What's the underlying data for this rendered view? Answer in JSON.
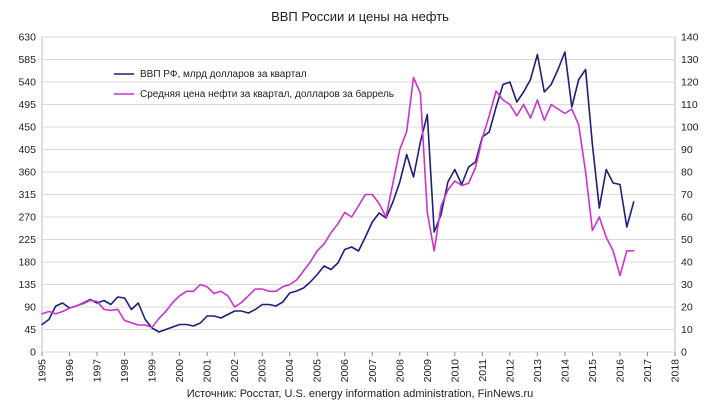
{
  "chart_data": {
    "type": "line",
    "title": "ВВП России и цены на нефть",
    "source": "Источник: Росстат, U.S. energy information administration, FinNews.ru",
    "x_ticks": [
      "1995",
      "1996",
      "1997",
      "1998",
      "1999",
      "2000",
      "2001",
      "2002",
      "2003",
      "2004",
      "2005",
      "2006",
      "2007",
      "2008",
      "2009",
      "2010",
      "2011",
      "2012",
      "2013",
      "2014",
      "2015",
      "2016",
      "2017",
      "2018"
    ],
    "x_range": [
      1995,
      2018
    ],
    "y_left_ticks": [
      "0",
      "45",
      "90",
      "135",
      "180",
      "225",
      "270",
      "315",
      "360",
      "405",
      "450",
      "495",
      "540",
      "585",
      "630"
    ],
    "y_left_range": [
      0,
      630
    ],
    "y_right_ticks": [
      "0",
      "10",
      "20",
      "30",
      "40",
      "50",
      "60",
      "70",
      "80",
      "90",
      "100",
      "110",
      "120",
      "130",
      "140"
    ],
    "y_right_range": [
      0,
      140
    ],
    "grid": "horizontal",
    "legend_position": "top-left",
    "colors": {
      "gdp": "#1f1f7a",
      "oil": "#cc33cc"
    },
    "series": [
      {
        "name": "ВВП РФ, млрд долларов за квартал",
        "axis": "left",
        "color": "#1f1f7a",
        "x": [
          1995.0,
          1995.25,
          1995.5,
          1995.75,
          1996.0,
          1996.25,
          1996.5,
          1996.75,
          1997.0,
          1997.25,
          1997.5,
          1997.75,
          1998.0,
          1998.25,
          1998.5,
          1998.75,
          1999.0,
          1999.25,
          1999.5,
          1999.75,
          2000.0,
          2000.25,
          2000.5,
          2000.75,
          2001.0,
          2001.25,
          2001.5,
          2001.75,
          2002.0,
          2002.25,
          2002.5,
          2002.75,
          2003.0,
          2003.25,
          2003.5,
          2003.75,
          2004.0,
          2004.25,
          2004.5,
          2004.75,
          2005.0,
          2005.25,
          2005.5,
          2005.75,
          2006.0,
          2006.25,
          2006.5,
          2006.75,
          2007.0,
          2007.25,
          2007.5,
          2007.75,
          2008.0,
          2008.25,
          2008.5,
          2008.75,
          2009.0,
          2009.25,
          2009.5,
          2009.75,
          2010.0,
          2010.25,
          2010.5,
          2010.75,
          2011.0,
          2011.25,
          2011.5,
          2011.75,
          2012.0,
          2012.25,
          2012.5,
          2012.75,
          2013.0,
          2013.25,
          2013.5,
          2013.75,
          2014.0,
          2014.25,
          2014.5,
          2014.75,
          2015.0,
          2015.25,
          2015.5,
          2015.75,
          2016.0,
          2016.25,
          2016.5
        ],
        "values": [
          55,
          65,
          92,
          98,
          88,
          92,
          98,
          105,
          98,
          103,
          95,
          110,
          108,
          85,
          98,
          65,
          48,
          40,
          45,
          50,
          55,
          55,
          52,
          58,
          72,
          72,
          68,
          75,
          82,
          82,
          78,
          85,
          95,
          95,
          92,
          100,
          118,
          122,
          128,
          140,
          155,
          172,
          165,
          178,
          205,
          210,
          202,
          230,
          260,
          278,
          268,
          300,
          340,
          395,
          350,
          420,
          475,
          240,
          275,
          340,
          365,
          335,
          370,
          380,
          430,
          440,
          490,
          535,
          540,
          500,
          520,
          545,
          595,
          520,
          535,
          565,
          600,
          490,
          545,
          565,
          415,
          288,
          365,
          338,
          335,
          250,
          300
        ]
      },
      {
        "name": "Средняя цена нефти за квартал, долларов за баррель",
        "axis": "right",
        "color": "#cc33cc",
        "x": [
          1995.0,
          1995.25,
          1995.5,
          1995.75,
          1996.0,
          1996.25,
          1996.5,
          1996.75,
          1997.0,
          1997.25,
          1997.5,
          1997.75,
          1998.0,
          1998.25,
          1998.5,
          1998.75,
          1999.0,
          1999.25,
          1999.5,
          1999.75,
          2000.0,
          2000.25,
          2000.5,
          2000.75,
          2001.0,
          2001.25,
          2001.5,
          2001.75,
          2002.0,
          2002.25,
          2002.5,
          2002.75,
          2003.0,
          2003.25,
          2003.5,
          2003.75,
          2004.0,
          2004.25,
          2004.5,
          2004.75,
          2005.0,
          2005.25,
          2005.5,
          2005.75,
          2006.0,
          2006.25,
          2006.5,
          2006.75,
          2007.0,
          2007.25,
          2007.5,
          2007.75,
          2008.0,
          2008.25,
          2008.5,
          2008.75,
          2009.0,
          2009.25,
          2009.5,
          2009.75,
          2010.0,
          2010.25,
          2010.5,
          2010.75,
          2011.0,
          2011.25,
          2011.5,
          2011.75,
          2012.0,
          2012.25,
          2012.5,
          2012.75,
          2013.0,
          2013.25,
          2013.5,
          2013.75,
          2014.0,
          2014.25,
          2014.5,
          2014.75,
          2015.0,
          2015.25,
          2015.5,
          2015.75,
          2016.0,
          2016.25,
          2016.5
        ],
        "values": [
          17,
          18,
          17,
          18,
          19.5,
          20.5,
          21.5,
          23,
          22.5,
          19,
          18.5,
          19,
          14,
          13,
          12,
          12,
          11,
          15,
          18,
          22,
          25,
          27,
          27,
          30,
          29,
          26,
          27,
          25,
          20,
          22,
          25,
          28,
          28,
          27,
          27,
          29,
          30,
          32,
          36,
          40,
          45,
          48,
          53,
          57,
          62,
          60,
          65,
          70,
          70,
          66,
          60,
          75,
          90,
          98,
          122,
          115,
          62,
          45,
          65,
          72,
          76,
          74,
          75,
          82,
          95,
          105,
          116,
          112,
          110,
          105,
          110,
          104,
          112,
          103,
          110,
          108,
          106,
          108,
          101,
          80,
          54,
          60,
          51,
          45,
          34,
          45,
          45
        ]
      }
    ]
  }
}
